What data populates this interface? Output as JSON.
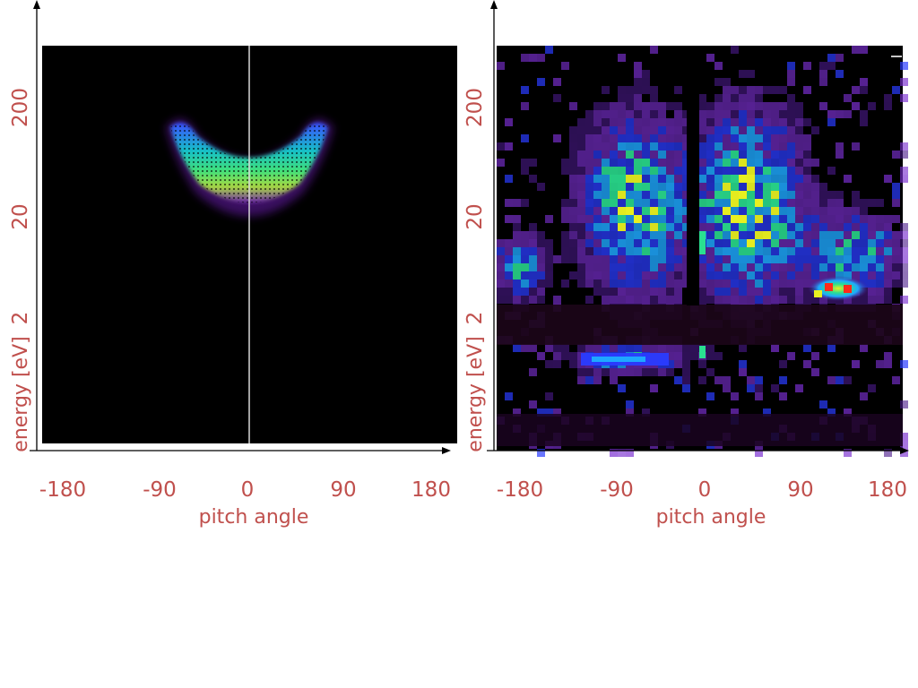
{
  "chart_data": [
    {
      "type": "heatmap",
      "panel": "left",
      "xlabel": "pitch angle",
      "ylabel": "energy [eV]",
      "x_ticks": [
        "-180",
        "-90",
        "0",
        "90",
        "180"
      ],
      "y_ticks": [
        "2",
        "20",
        "200"
      ],
      "xlim": [
        -180,
        180
      ],
      "y_scale": "log",
      "background": "#000000",
      "colormap": [
        "#2a0a4a",
        "#6a1fb0",
        "#3a4cff",
        "#17c0c8",
        "#3fe07a",
        "#d8f040"
      ],
      "center_line": 0
    },
    {
      "type": "heatmap",
      "panel": "right",
      "xlabel": "pitch angle",
      "ylabel": "energy [eV]",
      "x_ticks": [
        "-180",
        "-90",
        "0",
        "90",
        "180"
      ],
      "y_ticks": [
        "2",
        "20",
        "200"
      ],
      "xlim": [
        -180,
        180
      ],
      "y_scale": "log",
      "background": "#000000",
      "colormap": [
        "#1a0524",
        "#4a1a8a",
        "#7a2fd0",
        "#2a3cff",
        "#1ea8ff",
        "#2ae090",
        "#e8f020",
        "#ff2a1a"
      ]
    }
  ]
}
